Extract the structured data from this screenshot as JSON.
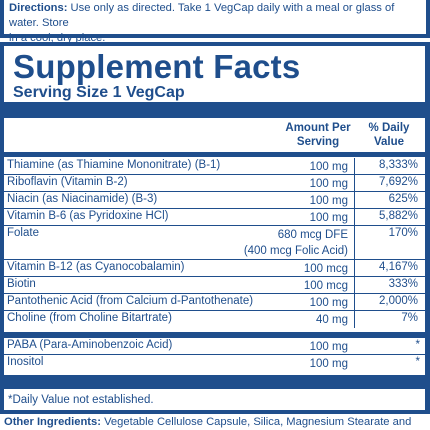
{
  "directions": {
    "label": "Directions:",
    "text": " Use only as directed. Take 1 VegCap daily with a meal or glass of water. Store",
    "text2": "in a cool, dry place."
  },
  "facts": {
    "title": "Supplement Facts",
    "serving_size": "Serving Size 1 VegCap",
    "header_amount_1": "Amount Per",
    "header_amount_2": "Serving",
    "header_dv_1": "% Daily",
    "header_dv_2": "Value",
    "rows": [
      {
        "name": "Thiamine (as Thiamine Mononitrate) (B-1)",
        "amount": "100 mg",
        "dv": "8,333%"
      },
      {
        "name": "Riboflavin (Vitamin B-2)",
        "amount": "100 mg",
        "dv": "7,692%"
      },
      {
        "name": "Niacin (as Niacinamide) (B-3)",
        "amount": "100 mg",
        "dv": "625%"
      },
      {
        "name": "Vitamin B-6 (as Pyridoxine HCl)",
        "amount": "100 mg",
        "dv": "5,882%"
      },
      {
        "name": "Folate",
        "amount": "680 mcg DFE",
        "amount2": "(400 mcg Folic Acid)",
        "dv": "170%"
      },
      {
        "name": "Vitamin B-12 (as Cyanocobalamin)",
        "amount": "100 mcg",
        "dv": "4,167%"
      },
      {
        "name": "Biotin",
        "amount": "100 mcg",
        "dv": "333%"
      },
      {
        "name": "Pantothenic Acid (from Calcium d-Pantothenate)",
        "amount": "100 mg",
        "dv": "2,000%"
      },
      {
        "name": "Choline (from Choline Bitartrate)",
        "amount": "40 mg",
        "dv": "7%"
      }
    ],
    "rows2": [
      {
        "name": "PABA (Para-Aminobenzoic Acid)",
        "amount": "100 mg",
        "dv": "*"
      },
      {
        "name": "Inositol",
        "amount": "100 mg",
        "dv": "*"
      }
    ],
    "footnote": "*Daily Value not established."
  },
  "other": {
    "label": "Other Ingredients:",
    "text": " Vegetable Cellulose Capsule, Silica, Magnesium Stearate and"
  }
}
